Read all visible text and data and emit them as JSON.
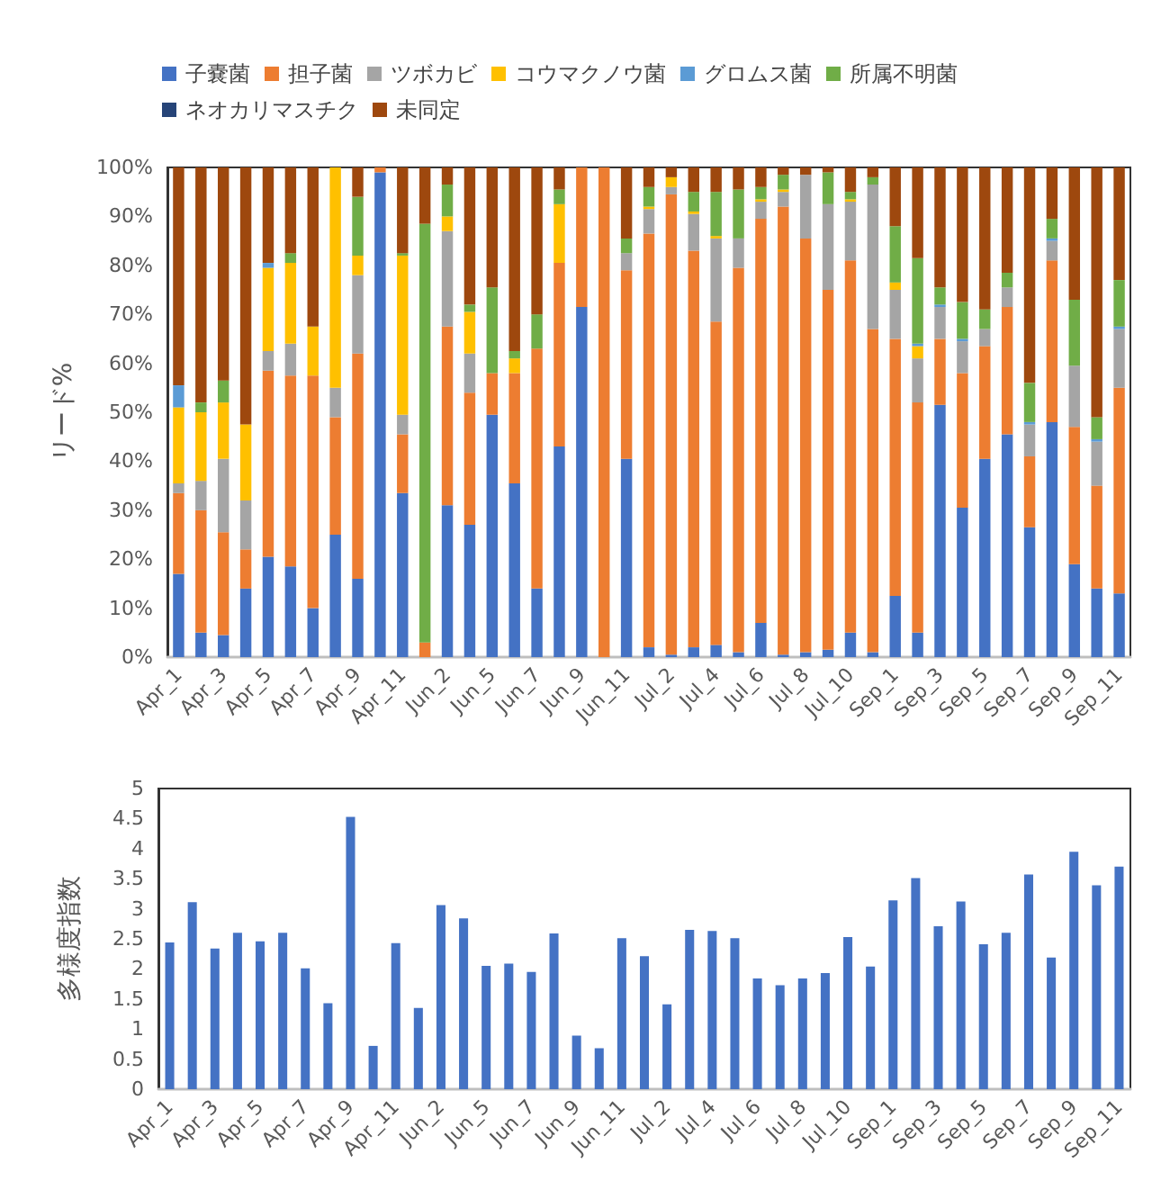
{
  "chart_data": [
    {
      "type": "bar",
      "stacked": true,
      "ylabel": "リード%",
      "legend": "top",
      "grid": false,
      "categories": [
        "Apr_1",
        null,
        "Apr_3",
        null,
        "Apr_5",
        null,
        "Apr_7",
        null,
        "Apr_9",
        null,
        "Apr_11",
        null,
        "Jun_2",
        null,
        "Jun_5",
        null,
        "Jun_7",
        null,
        "Jun_9",
        null,
        "Jun_11",
        null,
        "Jul_2",
        null,
        "Jul_4",
        null,
        "Jul_6",
        null,
        "Jul_8",
        null,
        "Jul_10",
        null,
        "Sep_1",
        null,
        "Sep_3",
        null,
        "Sep_5",
        null,
        "Sep_7",
        null,
        "Sep_9",
        null,
        "Sep_11"
      ],
      "ylim": [
        0,
        100
      ],
      "yticks": [
        {
          "value": 0,
          "label": "0%"
        },
        {
          "value": 10,
          "label": "10%"
        },
        {
          "value": 20,
          "label": "20%"
        },
        {
          "value": 30,
          "label": "30%"
        },
        {
          "value": 40,
          "label": "40%"
        },
        {
          "value": 50,
          "label": "50%"
        },
        {
          "value": 60,
          "label": "60%"
        },
        {
          "value": 70,
          "label": "70%"
        },
        {
          "value": 80,
          "label": "80%"
        },
        {
          "value": 90,
          "label": "90%"
        },
        {
          "value": 100,
          "label": "100%"
        }
      ],
      "series": [
        {
          "name": "子嚢菌",
          "color": "#4472c4",
          "values": [
            17,
            5,
            4.5,
            14,
            20.5,
            18.5,
            10,
            25,
            16,
            99,
            33.5,
            0,
            31,
            27,
            49.5,
            35.5,
            14,
            43,
            71.5,
            0,
            40.5,
            2,
            0.5,
            2,
            2.5,
            1,
            7,
            0.5,
            1,
            1.5,
            5,
            1,
            12.5,
            5,
            51.5,
            30.5,
            40.5,
            45.5,
            26.5,
            48,
            19,
            14,
            13
          ]
        },
        {
          "name": "担子菌",
          "color": "#ed7d31",
          "values": [
            16.5,
            25,
            21,
            8,
            38,
            39,
            47.5,
            24,
            46,
            1,
            12,
            3,
            36.5,
            27,
            8.5,
            22.5,
            49,
            37.5,
            28.5,
            100,
            38.5,
            84.5,
            94,
            81,
            66,
            78.5,
            82.5,
            91.5,
            84.5,
            73.5,
            76,
            66,
            52.5,
            47,
            13.5,
            27.5,
            23,
            26,
            14.5,
            33,
            28,
            21,
            42
          ]
        },
        {
          "name": "ツボカビ",
          "color": "#a5a5a5",
          "values": [
            2,
            6,
            15,
            10,
            4,
            6.5,
            0,
            6,
            16,
            0,
            4,
            0,
            19.5,
            8,
            0,
            0,
            0,
            0,
            0,
            0,
            3.5,
            5,
            1.5,
            7.5,
            17,
            6,
            3.5,
            3,
            13,
            17.5,
            12,
            29.5,
            10,
            9,
            6.5,
            6.5,
            3.5,
            4,
            6.5,
            4,
            12.5,
            9,
            12
          ]
        },
        {
          "name": "コウマクノウ菌",
          "color": "#ffc000",
          "values": [
            15.5,
            14,
            11.5,
            15.5,
            17,
            16.5,
            10,
            45,
            4,
            0,
            32.5,
            0,
            3,
            8.5,
            0,
            3,
            0,
            12,
            0,
            0,
            0,
            0.5,
            2,
            0.5,
            0.5,
            0,
            0.5,
            0.5,
            0,
            0,
            0.5,
            0,
            1.5,
            2.5,
            0,
            0,
            0,
            0,
            0,
            0,
            0,
            0,
            0
          ]
        },
        {
          "name": "グロムス菌",
          "color": "#5b9bd5",
          "values": [
            4.5,
            0,
            0,
            0,
            1,
            0,
            0,
            0,
            0,
            0,
            0,
            0,
            0,
            0,
            0,
            0,
            0,
            0,
            0,
            0,
            0,
            0,
            0,
            0,
            0,
            0,
            0,
            0,
            0,
            0,
            0,
            0,
            0,
            0.5,
            0.5,
            0.5,
            0,
            0,
            0.5,
            0.5,
            0,
            0.5,
            0.5
          ]
        },
        {
          "name": "所属不明菌",
          "color": "#70ad47",
          "values": [
            0,
            2,
            4.5,
            0,
            0,
            2,
            0,
            0,
            12,
            0,
            0.5,
            85.5,
            6.5,
            1.5,
            17.5,
            1.5,
            7,
            3,
            0,
            0,
            3,
            4,
            0,
            4,
            9,
            10,
            2.5,
            3,
            0,
            6.5,
            1.5,
            1.5,
            11.5,
            17.5,
            3.5,
            7.5,
            4,
            3,
            8,
            4,
            13.5,
            4.5,
            9.5
          ]
        },
        {
          "name": "ネオカリマスチク",
          "color": "#264478",
          "values": [
            0,
            0,
            0,
            0,
            0,
            0,
            0,
            0,
            0,
            0,
            0,
            0,
            0,
            0,
            0,
            0,
            0,
            0,
            0,
            0,
            0,
            0,
            0,
            0,
            0,
            0,
            0,
            0,
            0,
            0,
            0,
            0,
            0,
            0,
            0,
            0,
            0,
            0,
            0,
            0,
            0,
            0,
            0
          ]
        },
        {
          "name": "未同定",
          "color": "#9e480e",
          "values": [
            44.5,
            48,
            43.5,
            52.5,
            19.5,
            17.5,
            32.5,
            0,
            6,
            0,
            17.5,
            11.5,
            3.5,
            28,
            24.5,
            37.5,
            30,
            4.5,
            0,
            0,
            14.5,
            4,
            2,
            5,
            5,
            4.5,
            4,
            1.5,
            1.5,
            1,
            5,
            2,
            12,
            18.5,
            24.5,
            27.5,
            29,
            21.5,
            44,
            10.5,
            27,
            51,
            23
          ]
        }
      ]
    },
    {
      "type": "bar",
      "ylabel": "多様度指数",
      "grid": false,
      "categories": [
        "Apr_1",
        null,
        "Apr_3",
        null,
        "Apr_5",
        null,
        "Apr_7",
        null,
        "Apr_9",
        null,
        "Apr_11",
        null,
        "Jun_2",
        null,
        "Jun_5",
        null,
        "Jun_7",
        null,
        "Jun_9",
        null,
        "Jun_11",
        null,
        "Jul_2",
        null,
        "Jul_4",
        null,
        "Jul_6",
        null,
        "Jul_8",
        null,
        "Jul_10",
        null,
        "Sep_1",
        null,
        "Sep_3",
        null,
        "Sep_5",
        null,
        "Sep_7",
        null,
        "Sep_9",
        null,
        "Sep_11"
      ],
      "ylim": [
        0,
        5
      ],
      "yticks": [
        0,
        0.5,
        1,
        1.5,
        2,
        2.5,
        3,
        3.5,
        4,
        4.5,
        5
      ],
      "series": [
        {
          "color": "#4472c4",
          "values": [
            2.44,
            3.11,
            2.34,
            2.6,
            2.46,
            2.6,
            2.01,
            1.43,
            4.53,
            0.72,
            2.43,
            1.35,
            3.06,
            2.84,
            2.05,
            2.09,
            1.95,
            2.59,
            0.89,
            0.68,
            2.51,
            2.21,
            1.41,
            2.65,
            2.63,
            2.51,
            1.84,
            1.73,
            1.84,
            1.93,
            2.53,
            2.04,
            3.14,
            3.51,
            2.71,
            3.12,
            2.41,
            2.6,
            3.57,
            2.19,
            3.95,
            3.39,
            3.7
          ]
        }
      ]
    }
  ]
}
